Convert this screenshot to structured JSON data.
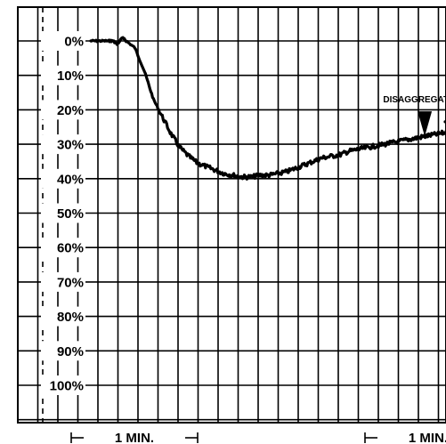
{
  "chart_data": {
    "type": "line",
    "title": "",
    "xlabel": "",
    "ylabel": "",
    "y_tick_labels": [
      "0%",
      "10%",
      "20%",
      "30%",
      "40%",
      "50%",
      "60%",
      "70%",
      "80%",
      "90%",
      "100%"
    ],
    "ylim": [
      0,
      110
    ],
    "y_inverted": true,
    "xlim": [
      0,
      4.56
    ],
    "x_unit": "min",
    "grid": true,
    "colors": {
      "line": "#000000",
      "grid": "#000000",
      "background": "#ffffff"
    },
    "series": [
      {
        "x": [
          0,
          0.09,
          0.18,
          0.23,
          0.27,
          0.32,
          0.36,
          0.45,
          0.55,
          0.64,
          0.73,
          0.82,
          0.91,
          1.0,
          1.09,
          1.18,
          1.27,
          1.36,
          1.45,
          1.55,
          1.64,
          1.73,
          1.82,
          1.91,
          2.0,
          2.09,
          2.18,
          2.27,
          2.36,
          2.45,
          2.55,
          2.64,
          2.73,
          2.82,
          2.91,
          3.0,
          3.09,
          3.18,
          3.27,
          3.36,
          3.45,
          3.55,
          3.64,
          3.73,
          3.82,
          3.91,
          4.0,
          4.09,
          4.18,
          4.27,
          4.36,
          4.45,
          4.56
        ],
        "values": [
          0,
          0,
          0,
          0,
          1,
          -1,
          0,
          2,
          9,
          17,
          22,
          27,
          31,
          33.5,
          35.5,
          36.5,
          37.5,
          38.5,
          39,
          39.5,
          39.5,
          39,
          39,
          38.5,
          38,
          37,
          36,
          35,
          34,
          33.5,
          33,
          32,
          31.5,
          31,
          30.5,
          30,
          29.5,
          29,
          28.5,
          28,
          27.5,
          27,
          26.5,
          26,
          25.5,
          25.5,
          25,
          25,
          24.5,
          24.5,
          24,
          24,
          23.5
        ]
      }
    ],
    "annotations": [
      {
        "text": "DISAGGREGATION",
        "x": 3.41,
        "y": 29.5,
        "marker": "down-arrow"
      }
    ],
    "time_scale": [
      {
        "label": "1 MIN.",
        "x_start": 0,
        "x_end": 1.0
      },
      {
        "label": "1 MIN.",
        "x_start": 3.0,
        "x_end": 4.0
      }
    ]
  }
}
